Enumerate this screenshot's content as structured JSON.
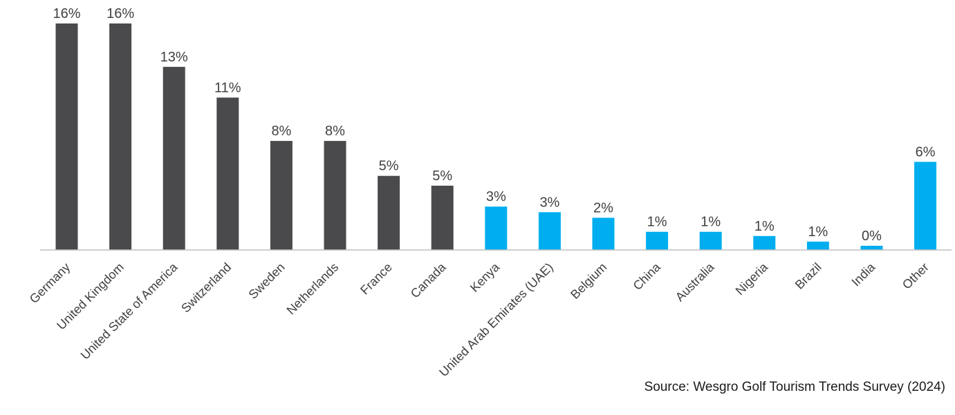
{
  "chart_data": {
    "type": "bar",
    "categories": [
      "Germany",
      "United Kingdom",
      "United State of America",
      "Switzerland",
      "Sweden",
      "Netherlands",
      "France",
      "Canada",
      "Kenya",
      "United Arab Emirates (UAE)",
      "Belgium",
      "China",
      "Australia",
      "Nigeria",
      "Brazil",
      "India",
      "Other"
    ],
    "values": [
      16,
      16,
      13,
      11,
      8,
      8,
      5,
      5,
      3,
      3,
      2,
      1,
      1,
      1,
      1,
      0,
      6
    ],
    "plotted_values": [
      16.2,
      16.2,
      13.1,
      10.9,
      7.8,
      7.8,
      5.3,
      4.6,
      3.1,
      2.7,
      2.3,
      1.3,
      1.3,
      1.0,
      0.6,
      0.3,
      6.3
    ],
    "data_labels": [
      "16%",
      "16%",
      "13%",
      "11%",
      "8%",
      "8%",
      "5%",
      "5%",
      "3%",
      "3%",
      "2%",
      "1%",
      "1%",
      "1%",
      "1%",
      "0%",
      "6%"
    ],
    "bar_colors": [
      "#4a4a4d",
      "#4a4a4d",
      "#4a4a4d",
      "#4a4a4d",
      "#4a4a4d",
      "#4a4a4d",
      "#4a4a4d",
      "#4a4a4d",
      "#00aeef",
      "#00aeef",
      "#00aeef",
      "#00aeef",
      "#00aeef",
      "#00aeef",
      "#00aeef",
      "#00aeef",
      "#00aeef"
    ],
    "title": "",
    "xlabel": "",
    "ylabel": "",
    "ylim": [
      0,
      16.2
    ],
    "grid": false,
    "legend": false,
    "y_axis_visible": false
  },
  "source_text": "Source: Wesgro Golf Tourism Trends Survey (2024)"
}
